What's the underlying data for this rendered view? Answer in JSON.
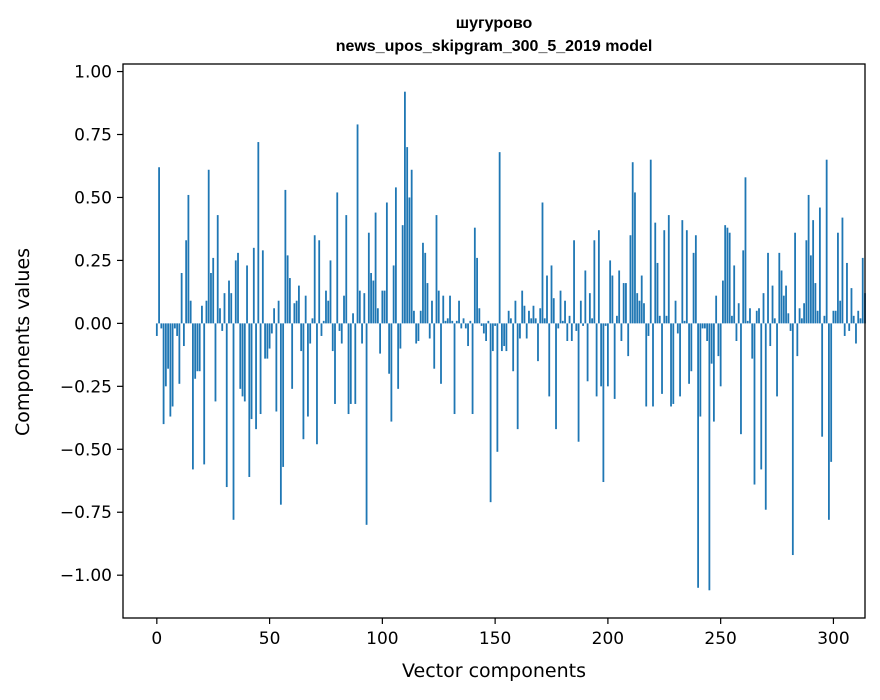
{
  "chart_data": {
    "type": "bar",
    "title": "шугурово",
    "subtitle": "news_upos_skipgram_300_5_2019 model",
    "xlabel": "Vector components",
    "ylabel": "Components values",
    "xlim": [
      -15,
      314
    ],
    "ylim": [
      -1.17,
      1.03
    ],
    "xticks": [
      0,
      50,
      100,
      150,
      200,
      250,
      300
    ],
    "xtick_labels": [
      "0",
      "50",
      "100",
      "150",
      "200",
      "250",
      "300"
    ],
    "yticks": [
      1.0,
      0.75,
      0.5,
      0.25,
      0.0,
      -0.25,
      -0.5,
      -0.75,
      -1.0
    ],
    "ytick_labels": [
      "1.00",
      "0.75",
      "0.50",
      "0.25",
      "0.00",
      "−0.25",
      "−0.50",
      "−0.75",
      "−1.00"
    ],
    "bar_color": "#1f77b4",
    "grid": false,
    "legend": "none",
    "values": [
      -0.05,
      0.62,
      -0.02,
      -0.4,
      -0.25,
      -0.18,
      -0.37,
      -0.33,
      -0.02,
      -0.05,
      -0.24,
      0.2,
      -0.09,
      0.33,
      0.51,
      0.09,
      -0.58,
      -0.22,
      -0.19,
      -0.19,
      0.07,
      -0.56,
      0.09,
      0.61,
      0.2,
      0.26,
      -0.31,
      0.43,
      0.06,
      -0.03,
      0.12,
      -0.65,
      0.17,
      0.12,
      -0.78,
      0.25,
      0.28,
      -0.26,
      -0.29,
      -0.31,
      0.23,
      -0.61,
      -0.38,
      0.3,
      -0.42,
      0.72,
      -0.36,
      0.29,
      -0.14,
      -0.14,
      -0.1,
      -0.04,
      0.06,
      -0.35,
      0.09,
      -0.72,
      -0.57,
      0.53,
      0.27,
      0.18,
      -0.26,
      0.08,
      0.09,
      0.15,
      -0.11,
      -0.46,
      0.11,
      -0.37,
      -0.08,
      0.02,
      0.35,
      -0.48,
      0.33,
      -0.05,
      0.01,
      0.13,
      0.09,
      0.25,
      -0.11,
      -0.32,
      0.52,
      -0.03,
      -0.08,
      0.11,
      0.43,
      -0.36,
      -0.32,
      0.04,
      -0.32,
      0.79,
      0.13,
      -0.08,
      0.12,
      -0.8,
      0.36,
      0.2,
      0.17,
      0.44,
      0.06,
      -0.12,
      0.13,
      0.13,
      0.48,
      -0.2,
      -0.39,
      0.23,
      0.54,
      -0.26,
      -0.1,
      0.39,
      0.92,
      0.7,
      0.5,
      0.61,
      0.05,
      -0.08,
      -0.07,
      0.05,
      0.32,
      0.28,
      0.16,
      -0.06,
      0.09,
      -0.18,
      0.43,
      0.13,
      -0.24,
      0.11,
      0.01,
      0.02,
      0.11,
      0.01,
      -0.36,
      0.01,
      0.09,
      -0.02,
      0.02,
      -0.02,
      -0.09,
      0.01,
      -0.36,
      0.38,
      0.26,
      0.06,
      -0.01,
      -0.04,
      -0.07,
      0.01,
      -0.71,
      -0.11,
      -0.01,
      -0.51,
      0.68,
      -0.11,
      -0.09,
      -0.11,
      0.05,
      0.02,
      -0.19,
      0.09,
      -0.42,
      -0.06,
      0.13,
      0.07,
      -0.06,
      0.05,
      0.02,
      0.07,
      0.02,
      -0.15,
      0.06,
      0.48,
      0.02,
      0.19,
      -0.29,
      0.23,
      0.1,
      -0.42,
      -0.02,
      0.13,
      0.01,
      0.09,
      -0.07,
      0.03,
      -0.07,
      0.33,
      -0.03,
      -0.47,
      0.09,
      -0.01,
      0.21,
      -0.23,
      0.12,
      0.02,
      0.33,
      -0.29,
      0.37,
      -0.25,
      -0.63,
      -0.01,
      -0.25,
      0.25,
      0.19,
      -0.3,
      0.03,
      0.21,
      -0.07,
      0.16,
      0.16,
      -0.13,
      0.35,
      0.64,
      0.52,
      0.12,
      0.09,
      0.19,
      0.08,
      -0.33,
      -0.05,
      0.65,
      -0.33,
      0.4,
      0.24,
      0.03,
      -0.28,
      0.37,
      0.03,
      0.43,
      -0.33,
      -0.32,
      0.09,
      -0.04,
      -0.29,
      0.41,
      0.01,
      0.37,
      -0.24,
      -0.19,
      0.28,
      0.35,
      -1.05,
      -0.37,
      -0.02,
      -0.02,
      -0.07,
      -1.06,
      -0.16,
      -0.39,
      0.11,
      -0.13,
      -0.25,
      0.17,
      0.39,
      0.38,
      0.36,
      0.03,
      0.23,
      -0.07,
      0.08,
      -0.44,
      0.29,
      0.58,
      0.01,
      0.06,
      -0.14,
      -0.64,
      0.05,
      0.06,
      -0.58,
      0.12,
      -0.74,
      0.28,
      -0.09,
      0.15,
      0.02,
      -0.29,
      0.28,
      0.21,
      0.11,
      0.15,
      0.04,
      -0.03,
      -0.92,
      0.36,
      -0.13,
      0.06,
      0.02,
      0.08,
      0.33,
      0.51,
      0.27,
      0.41,
      0.16,
      0.05,
      0.46,
      -0.45,
      0.03,
      0.65,
      -0.78,
      -0.55,
      0.05,
      0.05,
      0.36,
      0.09,
      0.42,
      -0.05,
      0.24,
      -0.03,
      0.14,
      0.03,
      -0.08,
      0.05,
      0.02,
      0.26,
      0.12
    ]
  }
}
